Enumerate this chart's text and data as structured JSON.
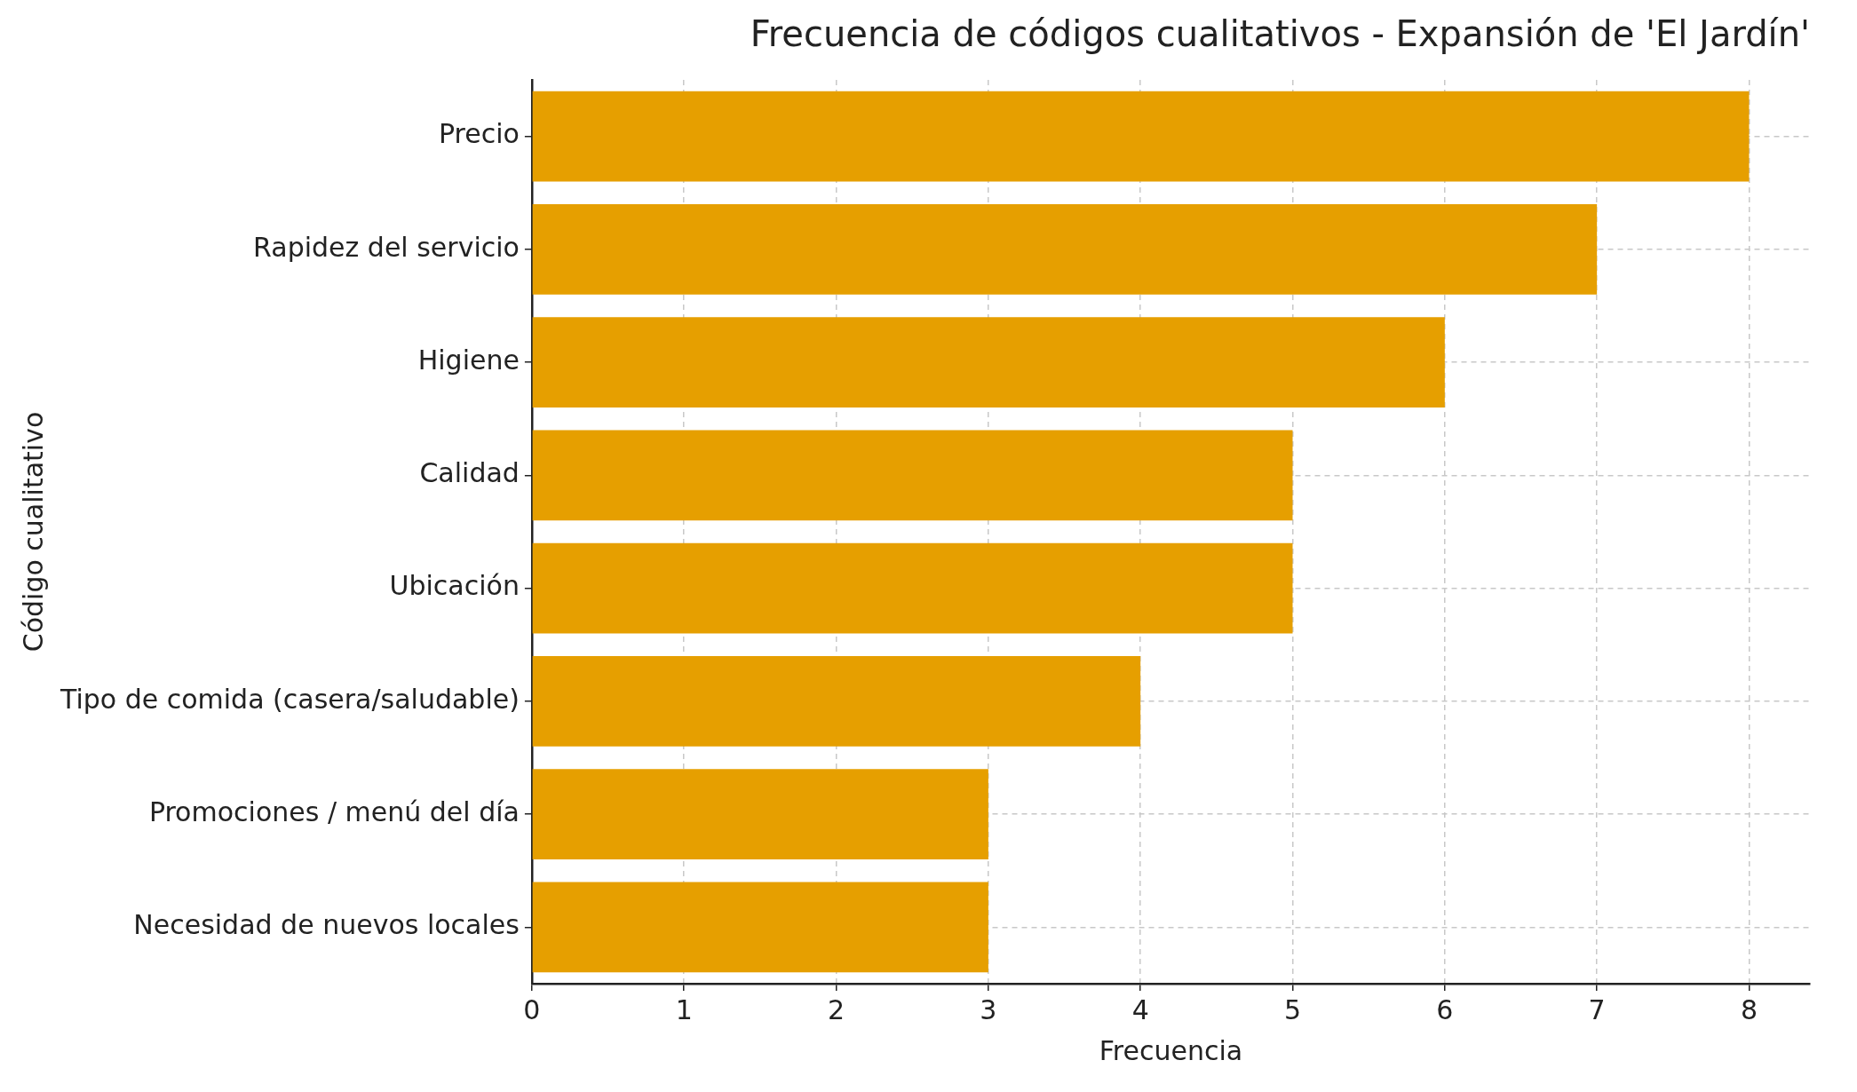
{
  "chart_data": {
    "type": "bar",
    "orientation": "horizontal",
    "title": "Frecuencia de códigos cualitativos - Expansión de 'El Jardín'",
    "xlabel": "Frecuencia",
    "ylabel": "Código cualitativo",
    "categories": [
      "Precio",
      "Rapidez del servicio",
      "Higiene",
      "Calidad",
      "Ubicación",
      "Tipo de comida (casera/saludable)",
      "Promociones / menú del día",
      "Necesidad de nuevos locales"
    ],
    "values": [
      8,
      7,
      6,
      5,
      5,
      4,
      3,
      3
    ],
    "color": "#e69f00",
    "xlim": [
      0,
      8.4
    ],
    "xticks": [
      0,
      1,
      2,
      3,
      4,
      5,
      6,
      7,
      8
    ],
    "grid": true
  }
}
